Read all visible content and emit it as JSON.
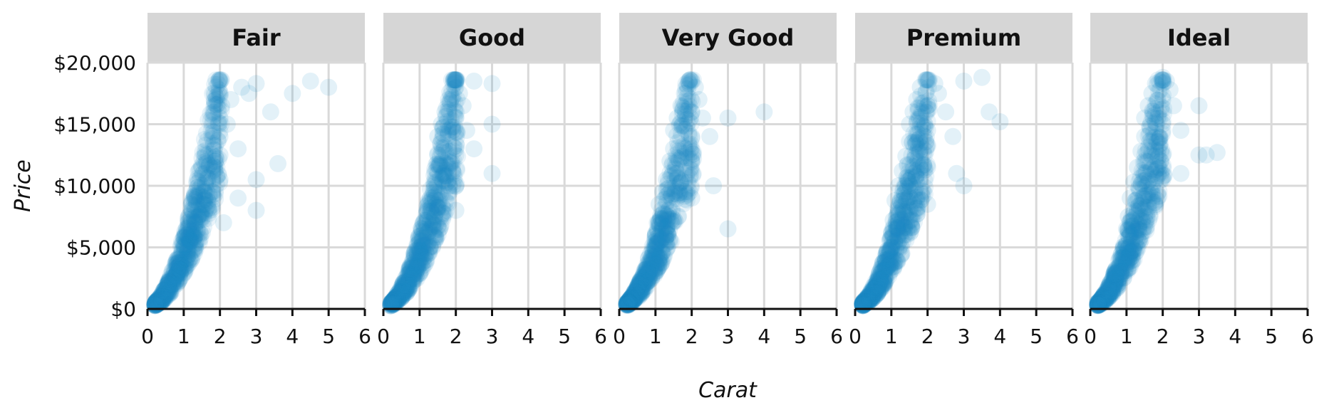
{
  "chart_data": {
    "type": "scatter",
    "xlabel": "Carat",
    "ylabel": "Price",
    "xlim": [
      0,
      6
    ],
    "ylim": [
      0,
      20000
    ],
    "x_ticks": [
      "0",
      "1",
      "2",
      "3",
      "4",
      "5",
      "6"
    ],
    "y_ticks": [
      "$0",
      "$5,000",
      "$10,000",
      "$15,000",
      "$20,000"
    ],
    "grid": true,
    "facet_by": "cut",
    "point_color": "#1a8cc8",
    "strip_color": "#d6d6d6",
    "grid_color": "#d9d9d9",
    "panels": [
      {
        "name": "Fair",
        "points": [
          [
            0.3,
            500
          ],
          [
            0.45,
            800
          ],
          [
            0.6,
            1500
          ],
          [
            0.7,
            2000
          ],
          [
            0.8,
            2600
          ],
          [
            0.9,
            3200
          ],
          [
            1.0,
            4000
          ],
          [
            1.0,
            5200
          ],
          [
            1.05,
            6000
          ],
          [
            1.1,
            4600
          ],
          [
            1.2,
            5500
          ],
          [
            1.3,
            6500
          ],
          [
            1.4,
            7500
          ],
          [
            1.5,
            8500
          ],
          [
            1.5,
            10000
          ],
          [
            1.5,
            11500
          ],
          [
            1.6,
            12500
          ],
          [
            1.7,
            8000
          ],
          [
            1.8,
            9500
          ],
          [
            2.0,
            10500
          ],
          [
            2.0,
            12500
          ],
          [
            2.0,
            14000
          ],
          [
            2.0,
            15500
          ],
          [
            2.0,
            18500
          ],
          [
            2.05,
            16500
          ],
          [
            2.1,
            7000
          ],
          [
            2.2,
            15000
          ],
          [
            2.3,
            17000
          ],
          [
            2.5,
            13000
          ],
          [
            2.5,
            9000
          ],
          [
            2.6,
            18000
          ],
          [
            2.8,
            17500
          ],
          [
            3.0,
            18300
          ],
          [
            3.0,
            10500
          ],
          [
            3.0,
            8000
          ],
          [
            3.4,
            16000
          ],
          [
            3.6,
            11800
          ],
          [
            4.0,
            17500
          ],
          [
            4.5,
            18500
          ],
          [
            5.0,
            18000
          ]
        ]
      },
      {
        "name": "Good",
        "points": [
          [
            0.3,
            500
          ],
          [
            0.5,
            900
          ],
          [
            0.6,
            1400
          ],
          [
            0.7,
            2100
          ],
          [
            0.8,
            2800
          ],
          [
            0.9,
            3500
          ],
          [
            1.0,
            4500
          ],
          [
            1.0,
            5500
          ],
          [
            1.05,
            6500
          ],
          [
            1.1,
            7000
          ],
          [
            1.2,
            8000
          ],
          [
            1.3,
            9000
          ],
          [
            1.4,
            10000
          ],
          [
            1.5,
            11000
          ],
          [
            1.5,
            12500
          ],
          [
            1.5,
            14000
          ],
          [
            1.6,
            15000
          ],
          [
            1.7,
            16000
          ],
          [
            1.8,
            17000
          ],
          [
            2.0,
            18000
          ],
          [
            2.0,
            15500
          ],
          [
            2.0,
            13000
          ],
          [
            2.0,
            10000
          ],
          [
            2.0,
            8000
          ],
          [
            2.1,
            17500
          ],
          [
            2.2,
            16500
          ],
          [
            2.3,
            14500
          ],
          [
            2.5,
            13000
          ],
          [
            2.5,
            18500
          ],
          [
            3.0,
            18300
          ],
          [
            3.0,
            11000
          ],
          [
            3.0,
            15000
          ]
        ]
      },
      {
        "name": "Very Good",
        "points": [
          [
            0.25,
            400
          ],
          [
            0.4,
            700
          ],
          [
            0.5,
            1100
          ],
          [
            0.6,
            1600
          ],
          [
            0.7,
            2300
          ],
          [
            0.8,
            3000
          ],
          [
            0.9,
            3900
          ],
          [
            1.0,
            4800
          ],
          [
            1.0,
            6000
          ],
          [
            1.05,
            7000
          ],
          [
            1.1,
            8500
          ],
          [
            1.2,
            9500
          ],
          [
            1.3,
            10500
          ],
          [
            1.4,
            12000
          ],
          [
            1.5,
            13000
          ],
          [
            1.5,
            14500
          ],
          [
            1.6,
            15500
          ],
          [
            1.7,
            16500
          ],
          [
            1.8,
            17500
          ],
          [
            2.0,
            18500
          ],
          [
            2.0,
            16000
          ],
          [
            2.0,
            14000
          ],
          [
            2.0,
            12000
          ],
          [
            2.0,
            9000
          ],
          [
            2.1,
            18000
          ],
          [
            2.2,
            17000
          ],
          [
            2.3,
            15500
          ],
          [
            2.5,
            14000
          ],
          [
            2.6,
            10000
          ],
          [
            3.0,
            15500
          ],
          [
            3.0,
            6500
          ],
          [
            4.0,
            16000
          ]
        ]
      },
      {
        "name": "Premium",
        "points": [
          [
            0.25,
            400
          ],
          [
            0.4,
            700
          ],
          [
            0.5,
            1100
          ],
          [
            0.6,
            1700
          ],
          [
            0.7,
            2400
          ],
          [
            0.8,
            3100
          ],
          [
            0.9,
            4000
          ],
          [
            1.0,
            5000
          ],
          [
            1.0,
            6200
          ],
          [
            1.05,
            7200
          ],
          [
            1.1,
            8800
          ],
          [
            1.2,
            10000
          ],
          [
            1.3,
            11200
          ],
          [
            1.4,
            12400
          ],
          [
            1.5,
            13600
          ],
          [
            1.5,
            15000
          ],
          [
            1.6,
            16000
          ],
          [
            1.7,
            17000
          ],
          [
            1.8,
            18000
          ],
          [
            2.0,
            18600
          ],
          [
            2.0,
            16500
          ],
          [
            2.0,
            14500
          ],
          [
            2.0,
            11500
          ],
          [
            2.0,
            8500
          ],
          [
            2.2,
            18300
          ],
          [
            2.3,
            17500
          ],
          [
            2.5,
            16000
          ],
          [
            2.7,
            14000
          ],
          [
            2.8,
            11000
          ],
          [
            3.0,
            18500
          ],
          [
            3.0,
            10000
          ],
          [
            3.5,
            18800
          ],
          [
            3.7,
            16000
          ],
          [
            4.0,
            15200
          ]
        ]
      },
      {
        "name": "Ideal",
        "points": [
          [
            0.25,
            400
          ],
          [
            0.4,
            700
          ],
          [
            0.5,
            1100
          ],
          [
            0.6,
            1700
          ],
          [
            0.7,
            2500
          ],
          [
            0.8,
            3300
          ],
          [
            0.9,
            4200
          ],
          [
            1.0,
            5200
          ],
          [
            1.0,
            6500
          ],
          [
            1.05,
            7500
          ],
          [
            1.1,
            9000
          ],
          [
            1.2,
            10300
          ],
          [
            1.3,
            11500
          ],
          [
            1.4,
            12800
          ],
          [
            1.5,
            14000
          ],
          [
            1.5,
            15500
          ],
          [
            1.6,
            16500
          ],
          [
            1.7,
            17500
          ],
          [
            1.8,
            18300
          ],
          [
            2.0,
            18800
          ],
          [
            2.0,
            17000
          ],
          [
            2.0,
            15000
          ],
          [
            2.0,
            12500
          ],
          [
            2.1,
            18500
          ],
          [
            2.2,
            17800
          ],
          [
            2.3,
            16500
          ],
          [
            2.5,
            14500
          ],
          [
            2.5,
            11000
          ],
          [
            3.0,
            16500
          ],
          [
            3.0,
            12500
          ],
          [
            3.2,
            12500
          ],
          [
            3.5,
            12700
          ]
        ]
      }
    ]
  }
}
